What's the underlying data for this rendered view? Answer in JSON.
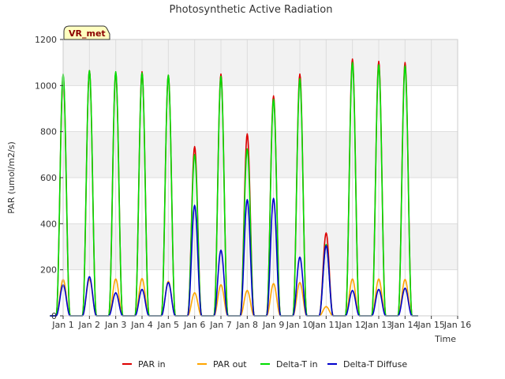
{
  "badge": "VR_met",
  "chart_data": {
    "type": "line",
    "title": "Photosynthetic Active Radiation",
    "xlabel": "Time",
    "ylabel": "PAR (umol/m2/s)",
    "xlim": [
      1,
      16
    ],
    "ylim": [
      0,
      1200
    ],
    "xticks": [
      1,
      2,
      3,
      4,
      5,
      6,
      7,
      8,
      9,
      10,
      11,
      12,
      13,
      14,
      15,
      16
    ],
    "xtick_labels": [
      "Jan 1",
      "Jan 2",
      "Jan 3",
      "Jan 4",
      "Jan 5",
      "Jan 6",
      "Jan 7",
      "Jan 8",
      "Jan 9",
      "Jan 10",
      "Jan 11",
      "Jan 12",
      "Jan 13",
      "Jan 14",
      "Jan 15",
      "Jan 16"
    ],
    "yticks": [
      0,
      200,
      400,
      600,
      800,
      1000,
      1200
    ],
    "grid": true,
    "background_bands": true,
    "legend_position": "bottom",
    "days": [
      1,
      2,
      3,
      4,
      5,
      6,
      7,
      8,
      9,
      10,
      11,
      12,
      13,
      14
    ],
    "series": [
      {
        "name": "PAR in",
        "color": "#dd0000",
        "daily_peak": [
          1040,
          1065,
          1055,
          1060,
          1045,
          735,
          1050,
          790,
          955,
          1050,
          360,
          1115,
          1105,
          1100
        ]
      },
      {
        "name": "PAR out",
        "color": "#ffa500",
        "daily_peak": [
          158,
          160,
          160,
          162,
          150,
          100,
          135,
          110,
          140,
          145,
          40,
          160,
          160,
          158
        ]
      },
      {
        "name": "Delta-T in",
        "color": "#00dd00",
        "daily_peak": [
          1050,
          1065,
          1060,
          1055,
          1045,
          700,
          1040,
          725,
          940,
          1030,
          310,
          1100,
          1090,
          1085
        ]
      },
      {
        "name": "Delta-T Diffuse",
        "color": "#0000cc",
        "daily_peak": [
          135,
          170,
          100,
          115,
          145,
          480,
          285,
          505,
          510,
          255,
          305,
          110,
          115,
          120
        ]
      }
    ]
  }
}
